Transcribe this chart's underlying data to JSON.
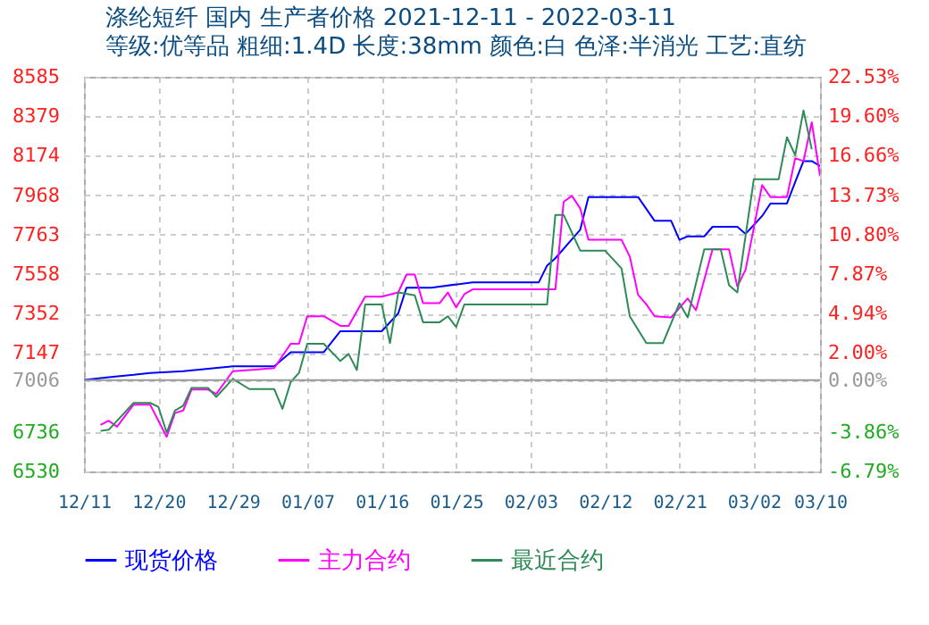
{
  "chart_data": {
    "type": "line",
    "title": "涤纶短纤 国内 生产者价格 2021-12-11 - 2022-03-11",
    "subtitle": "等级:优等品 粗细:1.4D 长度:38mm 颜色:白 色泽:半消光 工艺:直纺",
    "xlim": [
      "2021-12-11",
      "2022-03-10"
    ],
    "xticks": [
      {
        "value": "2021-12-11",
        "label": "12/11"
      },
      {
        "value": "2021-12-20",
        "label": "12/20"
      },
      {
        "value": "2021-12-29",
        "label": "12/29"
      },
      {
        "value": "2022-01-07",
        "label": "01/07"
      },
      {
        "value": "2022-01-16",
        "label": "01/16"
      },
      {
        "value": "2022-01-25",
        "label": "01/25"
      },
      {
        "value": "2022-02-03",
        "label": "02/03"
      },
      {
        "value": "2022-02-12",
        "label": "02/12"
      },
      {
        "value": "2022-02-21",
        "label": "02/21"
      },
      {
        "value": "2022-03-02",
        "label": "03/02"
      },
      {
        "value": "2022-03-10",
        "label": "03/10"
      }
    ],
    "ylim": [
      6530,
      8585
    ],
    "yticks": [
      6530,
      6736,
      7006,
      7147,
      7352,
      7558,
      7763,
      7968,
      8174,
      8379,
      8585
    ],
    "y2lim": [
      -6.79,
      22.53
    ],
    "y2ticks": [
      {
        "value": -6.79,
        "label": "-6.79%"
      },
      {
        "value": -3.86,
        "label": "-3.86%"
      },
      {
        "value": 0,
        "label": "0.00%"
      },
      {
        "value": 2.0,
        "label": "2.00%"
      },
      {
        "value": 4.94,
        "label": "4.94%"
      },
      {
        "value": 7.87,
        "label": "7.87%"
      },
      {
        "value": 10.8,
        "label": "10.80%"
      },
      {
        "value": 13.73,
        "label": "13.73%"
      },
      {
        "value": 16.66,
        "label": "16.66%"
      },
      {
        "value": 19.6,
        "label": "19.60%"
      },
      {
        "value": 22.53,
        "label": "22.53%"
      }
    ],
    "ref_lines": [
      {
        "axis": "y2",
        "value": 0,
        "color": "#999999"
      }
    ],
    "grid": true,
    "legend": "bottom",
    "marker": "none",
    "line_style": "solid",
    "series": [
      {
        "name": "现货价格",
        "color": "#0000ff",
        "x": [
          "2021-12-11",
          "2021-12-14",
          "2021-12-17",
          "2021-12-19",
          "2021-12-23",
          "2021-12-29",
          "2022-01-03",
          "2022-01-05",
          "2022-01-09",
          "2022-01-11",
          "2022-01-16",
          "2022-01-18",
          "2022-01-19",
          "2022-01-22",
          "2022-01-27",
          "2022-02-04",
          "2022-02-05",
          "2022-02-06",
          "2022-02-09",
          "2022-02-10",
          "2022-02-16",
          "2022-02-18",
          "2022-02-20",
          "2022-02-21",
          "2022-02-22",
          "2022-02-24",
          "2022-02-25",
          "2022-02-28",
          "2022-03-01",
          "2022-03-03",
          "2022-03-04",
          "2022-03-06",
          "2022-03-07",
          "2022-03-08",
          "2022-03-09",
          "2022-03-10"
        ],
        "values": [
          7006,
          7021,
          7033,
          7043,
          7052,
          7077,
          7077,
          7151,
          7151,
          7260,
          7260,
          7353,
          7487,
          7487,
          7515,
          7515,
          7602,
          7640,
          7788,
          7959,
          7959,
          7835,
          7835,
          7736,
          7754,
          7754,
          7804,
          7804,
          7767,
          7860,
          7925,
          7925,
          8037,
          8146,
          8146,
          8121
        ]
      },
      {
        "name": "主力合约",
        "color": "#ff00ff",
        "x": [
          "2021-12-13",
          "2021-12-14",
          "2021-12-15",
          "2021-12-17",
          "2021-12-19",
          "2021-12-21",
          "2021-12-22",
          "2021-12-23",
          "2021-12-24",
          "2021-12-26",
          "2021-12-27",
          "2021-12-29",
          "2021-12-31",
          "2022-01-03",
          "2022-01-05",
          "2022-01-06",
          "2022-01-07",
          "2022-01-09",
          "2022-01-11",
          "2022-01-12",
          "2022-01-14",
          "2022-01-16",
          "2022-01-18",
          "2022-01-19",
          "2022-01-20",
          "2022-01-21",
          "2022-01-23",
          "2022-01-24",
          "2022-01-25",
          "2022-01-26",
          "2022-01-27",
          "2022-02-06",
          "2022-02-07",
          "2022-02-08",
          "2022-02-09",
          "2022-02-10",
          "2022-02-14",
          "2022-02-15",
          "2022-02-16",
          "2022-02-17",
          "2022-02-18",
          "2022-02-20",
          "2022-02-22",
          "2022-02-23",
          "2022-02-25",
          "2022-02-27",
          "2022-02-28",
          "2022-03-01",
          "2022-03-02",
          "2022-03-03",
          "2022-03-04",
          "2022-03-06",
          "2022-03-07",
          "2022-03-08",
          "2022-03-09",
          "2022-03-10"
        ],
        "values": [
          6772,
          6794,
          6763,
          6878,
          6878,
          6710,
          6834,
          6847,
          6956,
          6956,
          6934,
          7052,
          7058,
          7068,
          7195,
          7195,
          7338,
          7338,
          7288,
          7288,
          7440,
          7440,
          7462,
          7555,
          7555,
          7406,
          7406,
          7462,
          7384,
          7453,
          7478,
          7478,
          7934,
          7965,
          7900,
          7736,
          7736,
          7649,
          7450,
          7400,
          7338,
          7332,
          7431,
          7369,
          7686,
          7686,
          7493,
          7580,
          7800,
          8021,
          7959,
          7959,
          8161,
          8146,
          8348,
          8068
        ]
      },
      {
        "name": "最近合约",
        "color": "#2e8b57",
        "x": [
          "2021-12-13",
          "2021-12-14",
          "2021-12-17",
          "2021-12-19",
          "2021-12-20",
          "2021-12-21",
          "2021-12-22",
          "2021-12-23",
          "2021-12-24",
          "2021-12-26",
          "2021-12-27",
          "2021-12-29",
          "2021-12-31",
          "2022-01-03",
          "2022-01-04",
          "2022-01-05",
          "2022-01-06",
          "2022-01-07",
          "2022-01-09",
          "2022-01-11",
          "2022-01-12",
          "2022-01-13",
          "2022-01-14",
          "2022-01-16",
          "2022-01-17",
          "2022-01-18",
          "2022-01-20",
          "2022-01-21",
          "2022-01-23",
          "2022-01-24",
          "2022-01-25",
          "2022-01-26",
          "2022-02-05",
          "2022-02-06",
          "2022-02-07",
          "2022-02-09",
          "2022-02-12",
          "2022-02-14",
          "2022-02-15",
          "2022-02-17",
          "2022-02-19",
          "2022-02-21",
          "2022-02-22",
          "2022-02-24",
          "2022-02-26",
          "2022-02-27",
          "2022-02-28",
          "2022-03-02",
          "2022-03-05",
          "2022-03-06",
          "2022-03-07",
          "2022-03-08",
          "2022-03-09"
        ],
        "values": [
          6741,
          6747,
          6887,
          6887,
          6866,
          6732,
          6847,
          6872,
          6965,
          6965,
          6918,
          7012,
          6959,
          6959,
          6856,
          6996,
          7043,
          7195,
          7195,
          7105,
          7142,
          7058,
          7400,
          7400,
          7198,
          7462,
          7447,
          7307,
          7307,
          7338,
          7282,
          7400,
          7400,
          7866,
          7866,
          7680,
          7680,
          7587,
          7338,
          7198,
          7198,
          7406,
          7332,
          7686,
          7686,
          7499,
          7462,
          8052,
          8052,
          8270,
          8177,
          8410,
          8208
        ]
      }
    ]
  }
}
